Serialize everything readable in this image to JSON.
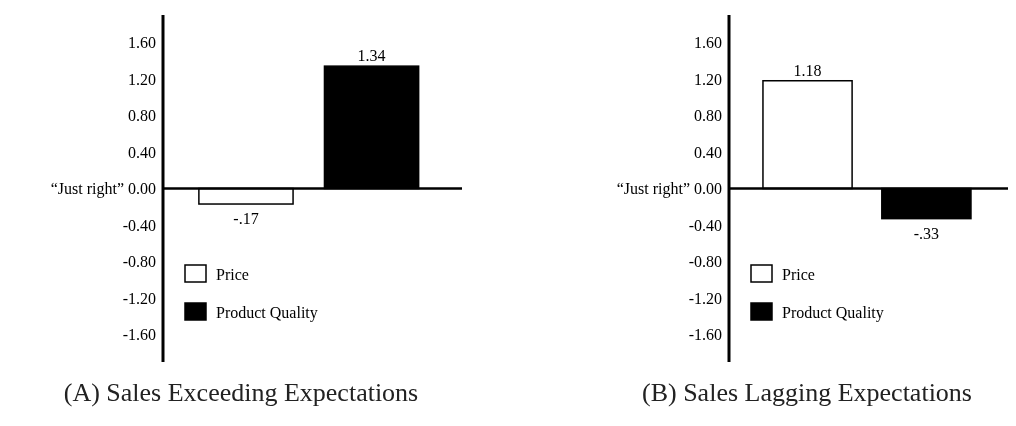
{
  "chart_data": [
    {
      "type": "bar",
      "title": "(A) Sales Exceeding Expectations",
      "categories": [
        null
      ],
      "series": [
        {
          "name": "Price",
          "color": "#ffffff",
          "values": [
            -0.17
          ],
          "value_labels": [
            "-.17"
          ]
        },
        {
          "name": "Product Quality",
          "color": "#000000",
          "values": [
            1.34
          ],
          "value_labels": [
            "1.34"
          ]
        }
      ],
      "ylim": [
        -1.9,
        1.9
      ],
      "yticks": [
        {
          "value": -1.6,
          "label": "-1.60"
        },
        {
          "value": -1.2,
          "label": "-1.20"
        },
        {
          "value": -0.8,
          "label": "-0.80"
        },
        {
          "value": -0.4,
          "label": "-0.40"
        },
        {
          "value": 0,
          "label": "“Just right” 0.00"
        },
        {
          "value": 0.4,
          "label": "0.40"
        },
        {
          "value": 0.8,
          "label": "0.80"
        },
        {
          "value": 1.2,
          "label": "1.20"
        },
        {
          "value": 1.6,
          "label": "1.60"
        }
      ],
      "legend": "bottom left",
      "tick_labels": "y"
    },
    {
      "type": "bar",
      "title": "(B) Sales Lagging Expectations",
      "categories": [
        null
      ],
      "series": [
        {
          "name": "Price",
          "color": "#ffffff",
          "values": [
            1.18
          ],
          "value_labels": [
            "1.18"
          ]
        },
        {
          "name": "Product Quality",
          "color": "#000000",
          "values": [
            -0.33
          ],
          "value_labels": [
            "-.33"
          ]
        }
      ],
      "ylim": [
        -1.9,
        1.9
      ],
      "yticks": [
        {
          "value": -1.6,
          "label": "-1.60"
        },
        {
          "value": -1.2,
          "label": "-1.20"
        },
        {
          "value": -0.8,
          "label": "-0.80"
        },
        {
          "value": -0.4,
          "label": "-0.40"
        },
        {
          "value": 0,
          "label": "“Just right” 0.00"
        },
        {
          "value": 0.4,
          "label": "0.40"
        },
        {
          "value": 0.8,
          "label": "0.80"
        },
        {
          "value": 1.2,
          "label": "1.20"
        },
        {
          "value": 1.6,
          "label": "1.60"
        }
      ],
      "legend": "bottom left",
      "tick_labels": "y"
    }
  ]
}
